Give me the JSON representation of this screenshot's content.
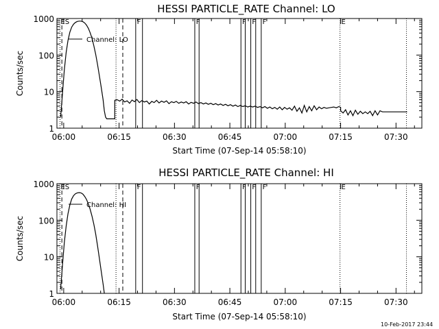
{
  "footer": {
    "timestamp": "10-Feb-2017 23:44"
  },
  "chart_data": [
    {
      "type": "line",
      "title": "HESSI PARTICLE_RATE Channel: LO",
      "xlabel": "Start Time (07-Sep-14 05:58:10)",
      "ylabel": "Counts/sec",
      "yscale": "log",
      "xlim": [
        "05:58:10",
        "07:37:00"
      ],
      "ylim": [
        1,
        1000
      ],
      "x_ticks": [
        "06:00",
        "06:15",
        "06:30",
        "06:45",
        "07:00",
        "07:15",
        "07:30"
      ],
      "y_ticks": [
        "1",
        "10",
        "100",
        "1000"
      ],
      "grid": false,
      "legend": "top-left",
      "series": [
        {
          "name": "Channel: LO",
          "points": [
            [
              "05:59:10",
              2.0
            ],
            [
              "05:59:40",
              9
            ],
            [
              "06:00:10",
              40
            ],
            [
              "06:00:40",
              120
            ],
            [
              "06:01:10",
              250
            ],
            [
              "06:01:40",
              420
            ],
            [
              "06:02:10",
              580
            ],
            [
              "06:02:40",
              700
            ],
            [
              "06:03:10",
              780
            ],
            [
              "06:03:40",
              830
            ],
            [
              "06:04:10",
              850
            ],
            [
              "06:04:40",
              850
            ],
            [
              "06:05:10",
              820
            ],
            [
              "06:05:40",
              760
            ],
            [
              "06:06:10",
              660
            ],
            [
              "06:06:40",
              540
            ],
            [
              "06:07:10",
              410
            ],
            [
              "06:07:40",
              290
            ],
            [
              "06:08:10",
              180
            ],
            [
              "06:08:40",
              105
            ],
            [
              "06:09:10",
              55
            ],
            [
              "06:09:40",
              27
            ],
            [
              "06:10:10",
              13
            ],
            [
              "06:10:40",
              6
            ],
            [
              "06:11:00",
              3
            ],
            [
              "06:11:20",
              2.0
            ],
            [
              "06:11:40",
              1.8
            ],
            [
              "06:13:50",
              1.8
            ],
            [
              "06:13:50",
              5.8
            ],
            [
              "06:14:30",
              6.0
            ],
            [
              "06:15:10",
              5.5
            ],
            [
              "06:15:50",
              6.2
            ],
            [
              "06:16:30",
              5.2
            ],
            [
              "06:17:10",
              5.6
            ],
            [
              "06:17:50",
              4.8
            ],
            [
              "06:18:30",
              5.9
            ],
            [
              "06:19:10",
              5.3
            ],
            [
              "06:19:50",
              6.1
            ],
            [
              "06:20:30",
              5.0
            ],
            [
              "06:21:10",
              5.7
            ],
            [
              "06:21:50",
              5.2
            ],
            [
              "06:22:30",
              5.5
            ],
            [
              "06:23:10",
              4.6
            ],
            [
              "06:23:50",
              5.4
            ],
            [
              "06:24:30",
              5.0
            ],
            [
              "06:25:10",
              5.8
            ],
            [
              "06:25:50",
              4.9
            ],
            [
              "06:26:30",
              5.5
            ],
            [
              "06:27:10",
              5.1
            ],
            [
              "06:27:50",
              5.6
            ],
            [
              "06:28:30",
              4.7
            ],
            [
              "06:29:10",
              5.3
            ],
            [
              "06:29:50",
              5.0
            ],
            [
              "06:30:30",
              5.4
            ],
            [
              "06:31:10",
              4.8
            ],
            [
              "06:31:50",
              5.2
            ],
            [
              "06:32:30",
              4.9
            ],
            [
              "06:33:10",
              5.3
            ],
            [
              "06:33:50",
              4.6
            ],
            [
              "06:34:30",
              5.1
            ],
            [
              "06:35:10",
              4.8
            ],
            [
              "06:35:50",
              5.2
            ],
            [
              "06:36:30",
              4.7
            ],
            [
              "06:37:10",
              5.0
            ],
            [
              "06:37:50",
              4.6
            ],
            [
              "06:38:30",
              4.9
            ],
            [
              "06:39:10",
              4.5
            ],
            [
              "06:39:50",
              4.8
            ],
            [
              "06:40:30",
              4.4
            ],
            [
              "06:41:10",
              4.7
            ],
            [
              "06:41:50",
              4.3
            ],
            [
              "06:42:30",
              4.6
            ],
            [
              "06:43:10",
              4.2
            ],
            [
              "06:43:50",
              4.5
            ],
            [
              "06:44:30",
              4.1
            ],
            [
              "06:45:10",
              4.4
            ],
            [
              "06:45:50",
              4.0
            ],
            [
              "06:46:30",
              4.3
            ],
            [
              "06:47:10",
              3.9
            ],
            [
              "06:47:50",
              4.2
            ],
            [
              "06:48:30",
              3.9
            ],
            [
              "06:49:10",
              4.1
            ],
            [
              "06:49:50",
              3.8
            ],
            [
              "06:50:30",
              4.0
            ],
            [
              "06:51:10",
              3.8
            ],
            [
              "06:51:50",
              4.0
            ],
            [
              "06:52:30",
              3.7
            ],
            [
              "06:53:10",
              3.9
            ],
            [
              "06:53:50",
              3.6
            ],
            [
              "06:54:30",
              3.9
            ],
            [
              "06:55:10",
              3.5
            ],
            [
              "06:55:50",
              3.8
            ],
            [
              "06:56:30",
              3.4
            ],
            [
              "06:57:10",
              3.7
            ],
            [
              "06:57:50",
              3.3
            ],
            [
              "06:58:30",
              3.8
            ],
            [
              "06:59:10",
              3.2
            ],
            [
              "06:59:50",
              3.7
            ],
            [
              "07:00:30",
              3.3
            ],
            [
              "07:01:10",
              3.6
            ],
            [
              "07:01:50",
              3.1
            ],
            [
              "07:02:30",
              4.0
            ],
            [
              "07:03:10",
              2.9
            ],
            [
              "07:03:50",
              3.6
            ],
            [
              "07:04:30",
              2.6
            ],
            [
              "07:05:10",
              4.2
            ],
            [
              "07:05:50",
              2.8
            ],
            [
              "07:06:30",
              3.9
            ],
            [
              "07:07:10",
              3.0
            ],
            [
              "07:07:50",
              4.1
            ],
            [
              "07:08:30",
              3.2
            ],
            [
              "07:09:10",
              3.8
            ],
            [
              "07:09:50",
              3.4
            ],
            [
              "07:10:30",
              3.7
            ],
            [
              "07:11:10",
              3.5
            ],
            [
              "07:11:50",
              3.6
            ],
            [
              "07:12:30",
              3.7
            ],
            [
              "07:13:10",
              3.8
            ],
            [
              "07:13:50",
              3.6
            ],
            [
              "07:14:30",
              3.9
            ],
            [
              "07:15:00",
              3.7
            ],
            [
              "07:15:00",
              3.0
            ],
            [
              "07:15:40",
              2.6
            ],
            [
              "07:16:20",
              3.2
            ],
            [
              "07:17:00",
              2.3
            ],
            [
              "07:17:40",
              3.0
            ],
            [
              "07:18:20",
              2.2
            ],
            [
              "07:19:00",
              3.1
            ],
            [
              "07:19:40",
              2.4
            ],
            [
              "07:20:20",
              2.9
            ],
            [
              "07:21:00",
              2.5
            ],
            [
              "07:21:40",
              2.8
            ],
            [
              "07:22:20",
              2.5
            ],
            [
              "07:23:00",
              2.9
            ],
            [
              "07:23:40",
              2.2
            ],
            [
              "07:24:20",
              3.0
            ],
            [
              "07:25:00",
              2.3
            ],
            [
              "07:25:40",
              3.0
            ],
            [
              "07:26:20",
              2.8
            ],
            [
              "07:27:00",
              2.8
            ],
            [
              "07:33:00",
              2.8
            ]
          ]
        }
      ],
      "dotted_lines": [
        "05:59:00",
        "06:14:10",
        "07:14:50",
        "07:32:50"
      ],
      "dashed_lines": [
        "05:59:30",
        "06:16:00"
      ],
      "solid_lines": [
        "06:19:30",
        "06:21:20",
        "06:35:30",
        "06:36:40",
        "06:48:00",
        "06:49:10",
        "06:50:40",
        "06:52:00",
        "06:53:30"
      ],
      "flags": [
        {
          "label": "ES",
          "time": "05:59:10"
        },
        {
          "label": "F",
          "time": "06:19:50"
        },
        {
          "label": "F",
          "time": "06:35:50"
        },
        {
          "label": "F",
          "time": "06:48:20"
        },
        {
          "label": "F",
          "time": "06:51:00"
        },
        {
          "label": "F",
          "time": "06:53:50"
        },
        {
          "label": "E",
          "time": "07:15:10"
        }
      ]
    },
    {
      "type": "line",
      "title": "HESSI PARTICLE_RATE Channel: HI",
      "xlabel": "Start Time (07-Sep-14 05:58:10)",
      "ylabel": "Counts/sec",
      "yscale": "log",
      "xlim": [
        "05:58:10",
        "07:37:00"
      ],
      "ylim": [
        1,
        1000
      ],
      "x_ticks": [
        "06:00",
        "06:15",
        "06:30",
        "06:45",
        "07:00",
        "07:15",
        "07:30"
      ],
      "y_ticks": [
        "1",
        "10",
        "100",
        "1000"
      ],
      "grid": false,
      "legend": "top-left",
      "series": [
        {
          "name": "Channel: HI",
          "points": [
            [
              "05:59:10",
              1.3
            ],
            [
              "05:59:40",
              6
            ],
            [
              "06:00:10",
              25
            ],
            [
              "06:00:40",
              70
            ],
            [
              "06:01:10",
              150
            ],
            [
              "06:01:40",
              260
            ],
            [
              "06:02:10",
              380
            ],
            [
              "06:02:40",
              470
            ],
            [
              "06:03:10",
              530
            ],
            [
              "06:03:40",
              560
            ],
            [
              "06:04:10",
              570
            ],
            [
              "06:04:40",
              560
            ],
            [
              "06:05:10",
              520
            ],
            [
              "06:05:40",
              450
            ],
            [
              "06:06:10",
              370
            ],
            [
              "06:06:40",
              280
            ],
            [
              "06:07:10",
              200
            ],
            [
              "06:07:40",
              130
            ],
            [
              "06:08:10",
              78
            ],
            [
              "06:08:40",
              42
            ],
            [
              "06:09:10",
              20
            ],
            [
              "06:09:40",
              9
            ],
            [
              "06:10:10",
              4
            ],
            [
              "06:10:40",
              1.8
            ],
            [
              "06:11:00",
              1.0
            ]
          ]
        }
      ],
      "dotted_lines": [
        "05:59:00",
        "06:14:10",
        "07:14:50",
        "07:32:50"
      ],
      "dashed_lines": [
        "05:59:30",
        "06:16:00"
      ],
      "solid_lines": [
        "06:19:30",
        "06:21:20",
        "06:35:30",
        "06:36:40",
        "06:48:00",
        "06:49:10",
        "06:50:40",
        "06:52:00",
        "06:53:30"
      ],
      "flags": [
        {
          "label": "ES",
          "time": "05:59:10"
        },
        {
          "label": "F",
          "time": "06:19:50"
        },
        {
          "label": "F",
          "time": "06:35:50"
        },
        {
          "label": "F",
          "time": "06:48:20"
        },
        {
          "label": "F",
          "time": "06:51:00"
        },
        {
          "label": "F",
          "time": "06:53:50"
        },
        {
          "label": "E",
          "time": "07:15:10"
        }
      ]
    }
  ]
}
